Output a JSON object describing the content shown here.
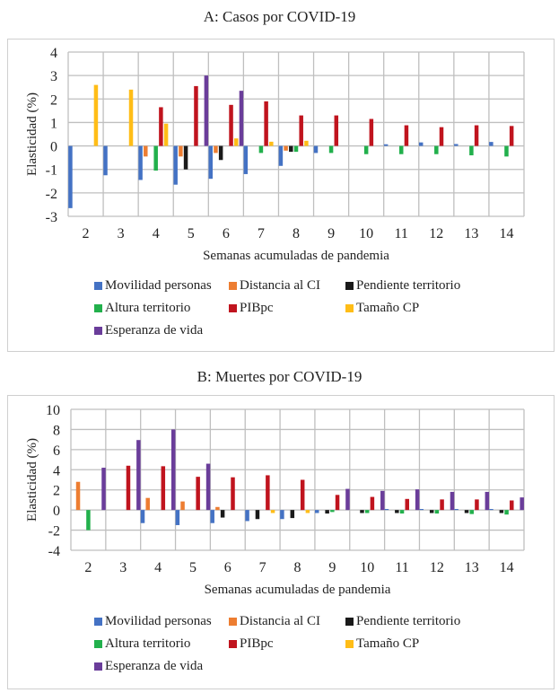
{
  "chart_data": [
    {
      "type": "bar",
      "title": "A: Casos por COVID-19",
      "xlabel": "Semanas acumuladas de pandemia",
      "ylabel": "Elasticidad (%)",
      "ylim": [
        -3,
        4
      ],
      "yticks": [
        "4",
        "3",
        "2",
        "1",
        "0",
        "-1",
        "-2",
        "-3"
      ],
      "ytick_values": [
        4,
        3,
        2,
        1,
        0,
        -1,
        -2,
        -3
      ],
      "grid": true,
      "legend_position": "bottom",
      "categories": [
        "2",
        "3",
        "4",
        "5",
        "6",
        "7",
        "8",
        "9",
        "10",
        "11",
        "12",
        "13",
        "14"
      ],
      "series": [
        {
          "name": "Movilidad personas",
          "color": "#4472c4",
          "values": [
            -2.65,
            -1.25,
            -1.45,
            -1.65,
            -1.4,
            -1.2,
            -0.85,
            -0.3,
            0,
            0.07,
            0.15,
            0.08,
            0.17
          ]
        },
        {
          "name": "Distancia al CI",
          "color": "#ed7d31",
          "values": [
            0,
            0,
            -0.45,
            -0.45,
            -0.3,
            0,
            -0.2,
            0,
            0,
            0,
            0,
            0,
            0
          ]
        },
        {
          "name": "Pendiente territorio",
          "color": "#1a1a1a",
          "values": [
            0,
            0,
            0,
            -1.0,
            -0.6,
            0,
            -0.25,
            0,
            0,
            0,
            0,
            0,
            0
          ]
        },
        {
          "name": "Altura territorio",
          "color": "#22b04c",
          "values": [
            0,
            0,
            -1.05,
            0,
            0,
            -0.3,
            -0.25,
            -0.3,
            -0.35,
            -0.35,
            -0.35,
            -0.4,
            -0.45
          ]
        },
        {
          "name": "PIBpc",
          "color": "#c0141e",
          "values": [
            0,
            0,
            1.65,
            2.55,
            1.75,
            1.9,
            1.3,
            1.3,
            1.15,
            0.88,
            0.8,
            0.88,
            0.85
          ]
        },
        {
          "name": "Tamaño CP",
          "color": "#ffbd17",
          "values": [
            2.6,
            2.4,
            0.95,
            0,
            0.32,
            0.18,
            0.22,
            0,
            0,
            0,
            0,
            0,
            0
          ]
        },
        {
          "name": "Esperanza de vida",
          "color": "#6a3d9a",
          "values": [
            0,
            0,
            0,
            3.0,
            2.35,
            0,
            0,
            0,
            0,
            0,
            0,
            0,
            0
          ]
        }
      ]
    },
    {
      "type": "bar",
      "title": "B: Muertes por COVID-19",
      "xlabel": "Semanas acumuladas de pandemia",
      "ylabel": "Elasticidad (%)",
      "ylim": [
        -4,
        10
      ],
      "yticks": [
        "10",
        "8",
        "6",
        "4",
        "2",
        "0",
        "-2",
        "-4"
      ],
      "ytick_values": [
        10,
        8,
        6,
        4,
        2,
        0,
        -2,
        -4
      ],
      "grid": true,
      "legend_position": "bottom",
      "categories": [
        "2",
        "3",
        "4",
        "5",
        "6",
        "7",
        "8",
        "9",
        "10",
        "11",
        "12",
        "13",
        "14"
      ],
      "series": [
        {
          "name": "Movilidad personas",
          "color": "#4472c4",
          "values": [
            0,
            0,
            -1.3,
            -1.5,
            -1.3,
            -1.1,
            -0.9,
            -0.3,
            0,
            0.1,
            0.1,
            0.1,
            0.1
          ]
        },
        {
          "name": "Distancia al CI",
          "color": "#ed7d31",
          "values": [
            2.8,
            0,
            1.2,
            0.85,
            0.3,
            0,
            0,
            0,
            0,
            0,
            0,
            0,
            0
          ]
        },
        {
          "name": "Pendiente territorio",
          "color": "#1a1a1a",
          "values": [
            0,
            0,
            0,
            0,
            -0.75,
            -0.9,
            -0.8,
            -0.35,
            -0.3,
            -0.3,
            -0.3,
            -0.3,
            -0.3
          ]
        },
        {
          "name": "Altura territorio",
          "color": "#22b04c",
          "values": [
            -2.0,
            0,
            0,
            0,
            0,
            0,
            0,
            -0.2,
            -0.3,
            -0.35,
            -0.35,
            -0.4,
            -0.45
          ]
        },
        {
          "name": "PIBpc",
          "color": "#c0141e",
          "values": [
            0,
            4.4,
            4.35,
            3.3,
            3.25,
            3.45,
            3.0,
            1.5,
            1.3,
            1.1,
            1.05,
            1.05,
            0.95
          ]
        },
        {
          "name": "Tamaño CP",
          "color": "#ffbd17",
          "values": [
            0,
            0,
            0,
            0,
            0,
            -0.3,
            -0.3,
            0,
            0,
            0,
            0,
            0,
            0
          ]
        },
        {
          "name": "Esperanza de vida",
          "color": "#6a3d9a",
          "values": [
            4.2,
            6.95,
            8.0,
            4.6,
            0,
            0,
            0,
            2.1,
            1.9,
            2.05,
            1.8,
            1.8,
            1.25
          ]
        }
      ]
    }
  ]
}
